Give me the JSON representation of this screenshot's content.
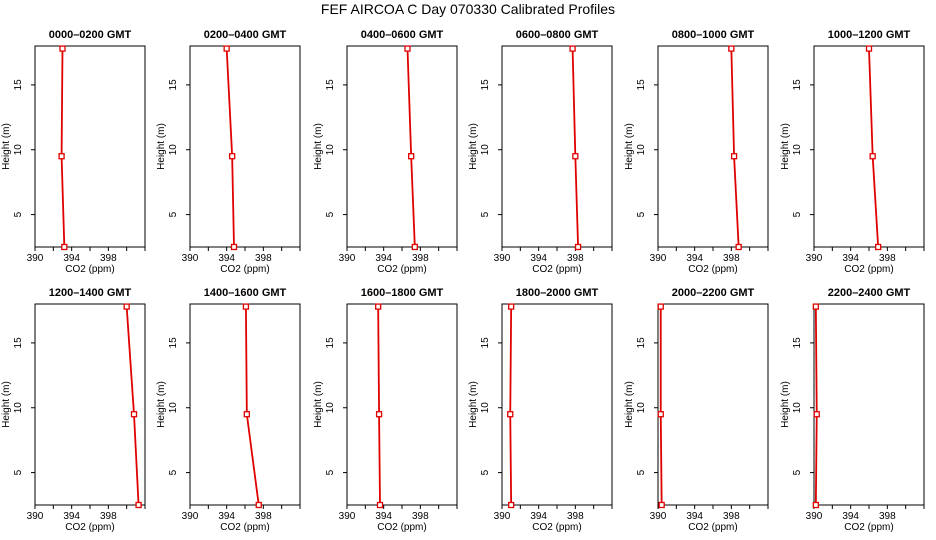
{
  "title": "FEF AIRCOA C  Day 070330  Calibrated Profiles",
  "chart_data": [
    {
      "type": "line",
      "title": "0000–0200 GMT",
      "xlabel": "CO2 (ppm)",
      "ylabel": "Height (m)",
      "xlim": [
        390,
        402
      ],
      "ylim": [
        2.5,
        18
      ],
      "xticks": [
        390,
        394,
        398
      ],
      "yticks": [
        5,
        10,
        15
      ],
      "series": [
        {
          "x": [
            393.0,
            392.9,
            393.2
          ],
          "y": [
            17.8,
            9.5,
            2.5
          ]
        }
      ]
    },
    {
      "type": "line",
      "title": "0200–0400 GMT",
      "xlabel": "CO2 (ppm)",
      "ylabel": "Height (m)",
      "xlim": [
        390,
        402
      ],
      "ylim": [
        2.5,
        18
      ],
      "xticks": [
        390,
        394,
        398
      ],
      "yticks": [
        5,
        10,
        15
      ],
      "series": [
        {
          "x": [
            394.0,
            394.6,
            394.8
          ],
          "y": [
            17.8,
            9.5,
            2.5
          ]
        }
      ]
    },
    {
      "type": "line",
      "title": "0400–0600 GMT",
      "xlabel": "CO2 (ppm)",
      "ylabel": "Height (m)",
      "xlim": [
        390,
        402
      ],
      "ylim": [
        2.5,
        18
      ],
      "xticks": [
        390,
        394,
        398
      ],
      "yticks": [
        5,
        10,
        15
      ],
      "series": [
        {
          "x": [
            396.6,
            397.0,
            397.4
          ],
          "y": [
            17.8,
            9.5,
            2.5
          ]
        }
      ]
    },
    {
      "type": "line",
      "title": "0600–0800 GMT",
      "xlabel": "CO2 (ppm)",
      "ylabel": "Height (m)",
      "xlim": [
        390,
        402
      ],
      "ylim": [
        2.5,
        18
      ],
      "xticks": [
        390,
        394,
        398
      ],
      "yticks": [
        5,
        10,
        15
      ],
      "series": [
        {
          "x": [
            397.7,
            398.0,
            398.3
          ],
          "y": [
            17.8,
            9.5,
            2.5
          ]
        }
      ]
    },
    {
      "type": "line",
      "title": "0800–1000 GMT",
      "xlabel": "CO2 (ppm)",
      "ylabel": "Height (m)",
      "xlim": [
        390,
        402
      ],
      "ylim": [
        2.5,
        18
      ],
      "xticks": [
        390,
        394,
        398
      ],
      "yticks": [
        5,
        10,
        15
      ],
      "series": [
        {
          "x": [
            398.0,
            398.3,
            398.8
          ],
          "y": [
            17.8,
            9.5,
            2.5
          ]
        }
      ]
    },
    {
      "type": "line",
      "title": "1000–1200 GMT",
      "xlabel": "CO2 (ppm)",
      "ylabel": "Height (m)",
      "xlim": [
        390,
        402
      ],
      "ylim": [
        2.5,
        18
      ],
      "xticks": [
        390,
        394,
        398
      ],
      "yticks": [
        5,
        10,
        15
      ],
      "series": [
        {
          "x": [
            396.0,
            396.4,
            397.0
          ],
          "y": [
            17.8,
            9.5,
            2.5
          ]
        }
      ]
    },
    {
      "type": "line",
      "title": "1200–1400 GMT",
      "xlabel": "CO2 (ppm)",
      "ylabel": "Height (m)",
      "xlim": [
        390,
        402
      ],
      "ylim": [
        2.5,
        18
      ],
      "xticks": [
        390,
        394,
        398
      ],
      "yticks": [
        5,
        10,
        15
      ],
      "series": [
        {
          "x": [
            400.0,
            400.8,
            401.3
          ],
          "y": [
            17.8,
            9.5,
            2.5
          ]
        }
      ]
    },
    {
      "type": "line",
      "title": "1400–1600 GMT",
      "xlabel": "CO2 (ppm)",
      "ylabel": "Height (m)",
      "xlim": [
        390,
        402
      ],
      "ylim": [
        2.5,
        18
      ],
      "xticks": [
        390,
        394,
        398
      ],
      "yticks": [
        5,
        10,
        15
      ],
      "series": [
        {
          "x": [
            396.1,
            396.2,
            397.5
          ],
          "y": [
            17.8,
            9.5,
            2.5
          ]
        }
      ]
    },
    {
      "type": "line",
      "title": "1600–1800 GMT",
      "xlabel": "CO2 (ppm)",
      "ylabel": "Height (m)",
      "xlim": [
        390,
        402
      ],
      "ylim": [
        2.5,
        18
      ],
      "xticks": [
        390,
        394,
        398
      ],
      "yticks": [
        5,
        10,
        15
      ],
      "series": [
        {
          "x": [
            393.4,
            393.5,
            393.6
          ],
          "y": [
            17.8,
            9.5,
            2.5
          ]
        }
      ]
    },
    {
      "type": "line",
      "title": "1800–2000 GMT",
      "xlabel": "CO2 (ppm)",
      "ylabel": "Height (m)",
      "xlim": [
        390,
        402
      ],
      "ylim": [
        2.5,
        18
      ],
      "xticks": [
        390,
        394,
        398
      ],
      "yticks": [
        5,
        10,
        15
      ],
      "series": [
        {
          "x": [
            391.0,
            390.9,
            391.0
          ],
          "y": [
            17.8,
            9.5,
            2.5
          ]
        }
      ]
    },
    {
      "type": "line",
      "title": "2000–2200 GMT",
      "xlabel": "CO2 (ppm)",
      "ylabel": "Height (m)",
      "xlim": [
        390,
        402
      ],
      "ylim": [
        2.5,
        18
      ],
      "xticks": [
        390,
        394,
        398
      ],
      "yticks": [
        5,
        10,
        15
      ],
      "series": [
        {
          "x": [
            390.3,
            390.3,
            390.4
          ],
          "y": [
            17.8,
            9.5,
            2.5
          ]
        }
      ]
    },
    {
      "type": "line",
      "title": "2200–2400 GMT",
      "xlabel": "CO2 (ppm)",
      "ylabel": "Height (m)",
      "xlim": [
        390,
        402
      ],
      "ylim": [
        2.5,
        18
      ],
      "xticks": [
        390,
        394,
        398
      ],
      "yticks": [
        5,
        10,
        15
      ],
      "series": [
        {
          "x": [
            390.2,
            390.3,
            390.2
          ],
          "y": [
            17.8,
            9.5,
            2.5
          ]
        }
      ]
    }
  ],
  "style": {
    "line_color": "#e00000",
    "axis_color": "#000000"
  }
}
